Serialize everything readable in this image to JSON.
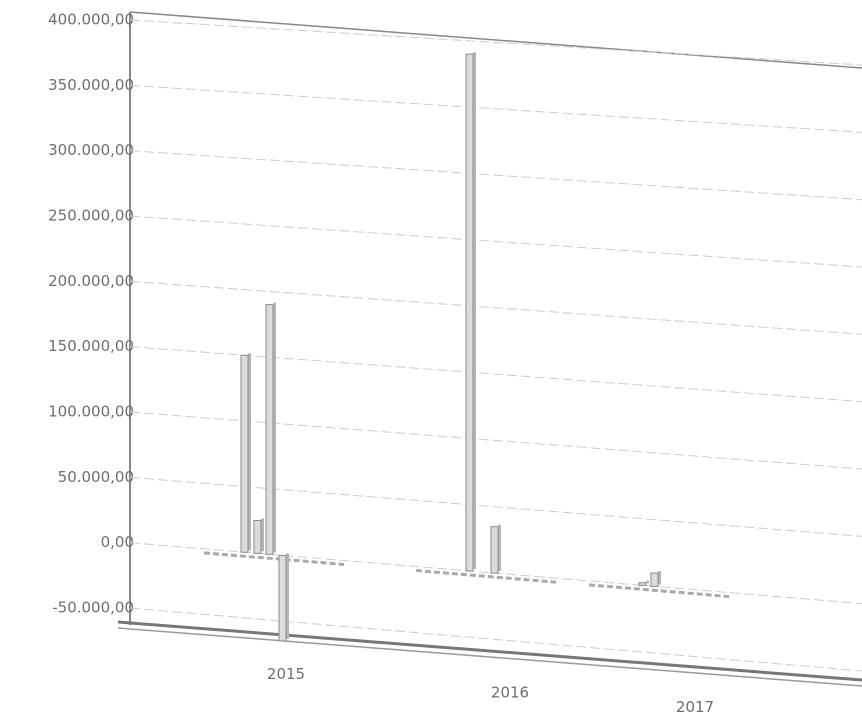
{
  "chart_data": {
    "type": "bar3d",
    "categories": [
      "2015",
      "2016",
      "2017"
    ],
    "series": [
      {
        "values": [
          150000,
          0,
          0
        ]
      },
      {
        "values": [
          25000,
          390000,
          2000
        ]
      },
      {
        "values": [
          190000,
          0,
          10000
        ]
      },
      {
        "values": [
          -65000,
          35000,
          0
        ]
      }
    ],
    "color": "#dcdcdc",
    "ylim": [
      -50000,
      400000
    ],
    "yticks": [
      {
        "value": -50000,
        "label": "-50.000,00"
      },
      {
        "value": 0,
        "label": "0,00"
      },
      {
        "value": 50000,
        "label": "50.000,00"
      },
      {
        "value": 100000,
        "label": "100.000,00"
      },
      {
        "value": 150000,
        "label": "150.000,00"
      },
      {
        "value": 200000,
        "label": "200.000,00"
      },
      {
        "value": 250000,
        "label": "250.000,00"
      },
      {
        "value": 300000,
        "label": "300.000,00"
      },
      {
        "value": 350000,
        "label": "350.000,00"
      },
      {
        "value": 400000,
        "label": "400.000,00"
      }
    ],
    "grid": true
  }
}
